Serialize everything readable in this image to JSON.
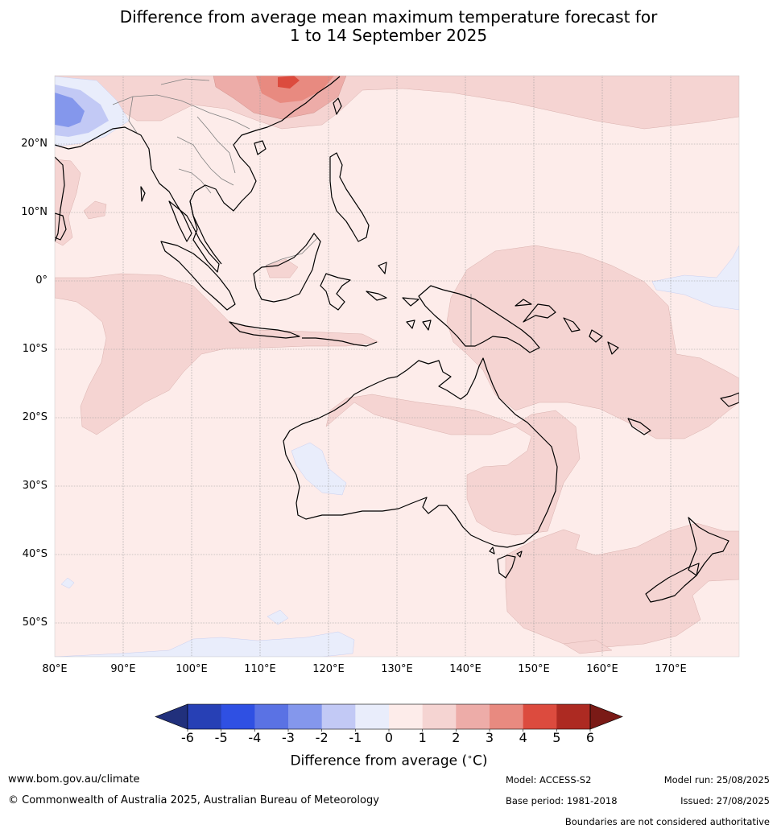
{
  "title": {
    "line1": "Difference from average mean maximum temperature forecast for",
    "line2": "1 to 14 September 2025"
  },
  "map": {
    "lat_labels": [
      "20°N",
      "10°N",
      "0°",
      "10°S",
      "20°S",
      "30°S",
      "40°S",
      "50°S"
    ],
    "lon_labels": [
      "80°E",
      "90°E",
      "100°E",
      "110°E",
      "120°E",
      "130°E",
      "140°E",
      "150°E",
      "160°E",
      "170°E"
    ],
    "colors": {
      "background": "#fdecea",
      "anomaly_plus1_2": "#f5d4d2",
      "anomaly_plus2_3": "#edaca8",
      "anomaly_plus3_4": "#e88a80",
      "anomaly_plus4_5": "#dc4b3e",
      "anomaly_minus0_1": "#e9edfb",
      "anomaly_minus1_2": "#c2c9f5",
      "anomaly_minus2_3": "#8497ec",
      "coastline": "#000000",
      "boundary": "#808080",
      "grid": "#999999"
    }
  },
  "colorbar": {
    "ticks": [
      "-6",
      "-5",
      "-4",
      "-3",
      "-2",
      "-1",
      "0",
      "1",
      "2",
      "3",
      "4",
      "5",
      "6"
    ],
    "colors": [
      "#21307c",
      "#2740b5",
      "#2f50e3",
      "#5a72e4",
      "#8497ec",
      "#c2c9f5",
      "#e9edfb",
      "#fdecea",
      "#f5d4d2",
      "#edaca8",
      "#e88a80",
      "#dc4b3e",
      "#ad2a22",
      "#7a1a16"
    ],
    "label": "Difference from average (°C)",
    "label_parts": {
      "prefix": "Difference from average (",
      "sup": "∘",
      "suffix": "C)"
    }
  },
  "footer": {
    "website": "www.bom.gov.au/climate",
    "copyright": "© Commonwealth of Australia 2025, Australian Bureau of Meteorology",
    "model": "Model: ACCESS-S2",
    "base_period": "Base period: 1981-2018",
    "model_run": "Model run: 25/08/2025",
    "issued": "Issued: 27/08/2025",
    "disclaimer": "Boundaries are not considered authoritative"
  }
}
